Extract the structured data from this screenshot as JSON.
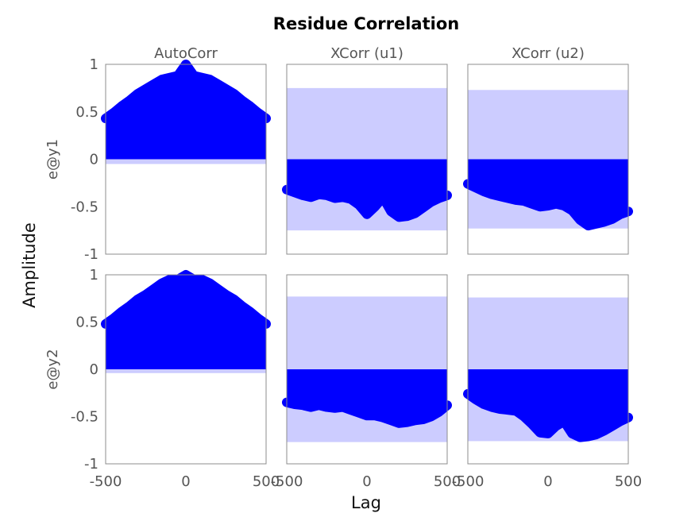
{
  "chart_data": {
    "type": "area",
    "title": "Residue Correlation",
    "xlabel": "Lag",
    "ylabel": "Amplitude",
    "column_titles": [
      "AutoCorr",
      "XCorr (u1)",
      "XCorr (u2)"
    ],
    "row_labels": [
      "e@y1",
      "e@y2"
    ],
    "xlim": [
      -500,
      500
    ],
    "ylim": [
      -1,
      1
    ],
    "x_ticks": [
      -500,
      0,
      500
    ],
    "y_ticks": [
      1,
      0.5,
      0,
      -0.5,
      -1
    ],
    "x": [
      -500,
      -450,
      -400,
      -350,
      -300,
      -250,
      -200,
      -150,
      -100,
      -50,
      0,
      50,
      100,
      150,
      200,
      250,
      300,
      350,
      400,
      450,
      500
    ],
    "series_color": "#0000ff",
    "confidence_color": "#ccccff",
    "panels": [
      {
        "row": "e@y1",
        "column": "AutoCorr",
        "confidence": 0.05,
        "values": [
          0.43,
          0.49,
          0.56,
          0.62,
          0.69,
          0.74,
          0.79,
          0.84,
          0.86,
          0.88,
          1.0,
          0.88,
          0.86,
          0.84,
          0.79,
          0.74,
          0.69,
          0.62,
          0.56,
          0.49,
          0.43
        ]
      },
      {
        "row": "e@y1",
        "column": "XCorr (u1)",
        "confidence": 0.75,
        "values": [
          -0.32,
          -0.35,
          -0.38,
          -0.4,
          -0.37,
          -0.38,
          -0.41,
          -0.4,
          -0.42,
          -0.48,
          -0.58,
          -0.5,
          -0.4,
          -0.55,
          -0.61,
          -0.6,
          -0.57,
          -0.51,
          -0.45,
          -0.41,
          -0.38
        ]
      },
      {
        "row": "e@y1",
        "column": "XCorr (u2)",
        "confidence": 0.73,
        "values": [
          -0.26,
          -0.3,
          -0.34,
          -0.37,
          -0.39,
          -0.41,
          -0.43,
          -0.44,
          -0.47,
          -0.5,
          -0.49,
          -0.47,
          -0.49,
          -0.54,
          -0.64,
          -0.7,
          -0.68,
          -0.66,
          -0.63,
          -0.58,
          -0.55
        ]
      },
      {
        "row": "e@y2",
        "column": "AutoCorr",
        "confidence": 0.04,
        "values": [
          0.48,
          0.54,
          0.61,
          0.67,
          0.74,
          0.79,
          0.85,
          0.91,
          0.95,
          0.95,
          1.0,
          0.95,
          0.95,
          0.91,
          0.85,
          0.79,
          0.74,
          0.67,
          0.61,
          0.54,
          0.48
        ]
      },
      {
        "row": "e@y2",
        "column": "XCorr (u1)",
        "confidence": 0.77,
        "values": [
          -0.35,
          -0.37,
          -0.38,
          -0.4,
          -0.38,
          -0.4,
          -0.41,
          -0.4,
          -0.43,
          -0.46,
          -0.49,
          -0.49,
          -0.51,
          -0.54,
          -0.57,
          -0.56,
          -0.54,
          -0.53,
          -0.5,
          -0.45,
          -0.38
        ]
      },
      {
        "row": "e@y2",
        "column": "XCorr (u2)",
        "confidence": 0.76,
        "values": [
          -0.26,
          -0.32,
          -0.37,
          -0.4,
          -0.42,
          -0.43,
          -0.44,
          -0.5,
          -0.58,
          -0.67,
          -0.68,
          -0.6,
          -0.55,
          -0.68,
          -0.72,
          -0.71,
          -0.69,
          -0.65,
          -0.6,
          -0.55,
          -0.51
        ]
      }
    ]
  }
}
